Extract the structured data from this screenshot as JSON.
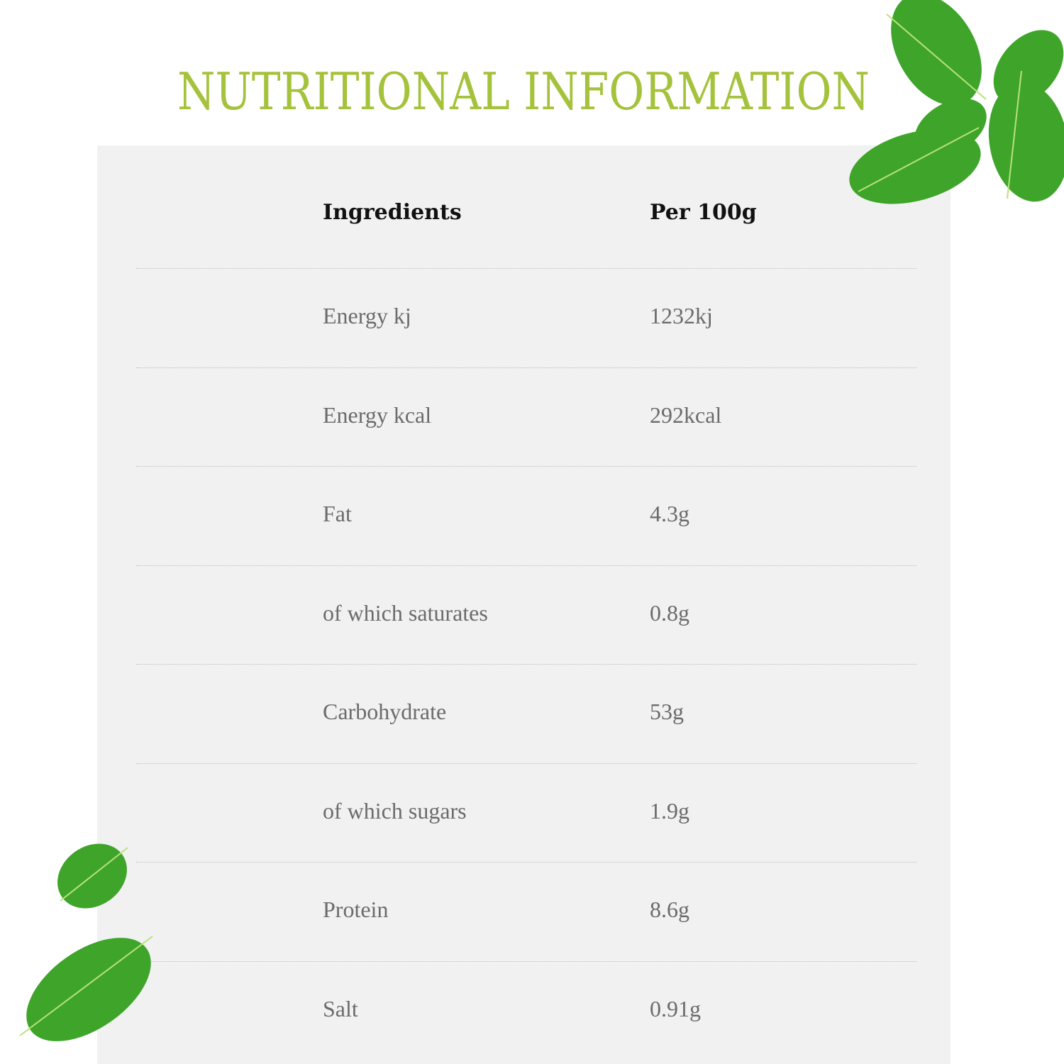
{
  "title": "NUTRITIONAL INFORMATION",
  "colors": {
    "title": "#a4c23b",
    "panel": "#f1f1f1",
    "leaf": "#3ea52a"
  },
  "table": {
    "headers": {
      "ingredient": "Ingredients",
      "value": "Per 100g"
    },
    "rows": [
      {
        "name": "Energy kj",
        "value": "1232kj"
      },
      {
        "name": "Energy kcal",
        "value": "292kcal"
      },
      {
        "name": "Fat",
        "value": "4.3g"
      },
      {
        "name": "of which saturates",
        "value": "0.8g"
      },
      {
        "name": "Carbohydrate",
        "value": "53g"
      },
      {
        "name": "of which sugars",
        "value": "1.9g"
      },
      {
        "name": "Protein",
        "value": "8.6g"
      },
      {
        "name": "Salt",
        "value": "0.91g"
      }
    ]
  }
}
